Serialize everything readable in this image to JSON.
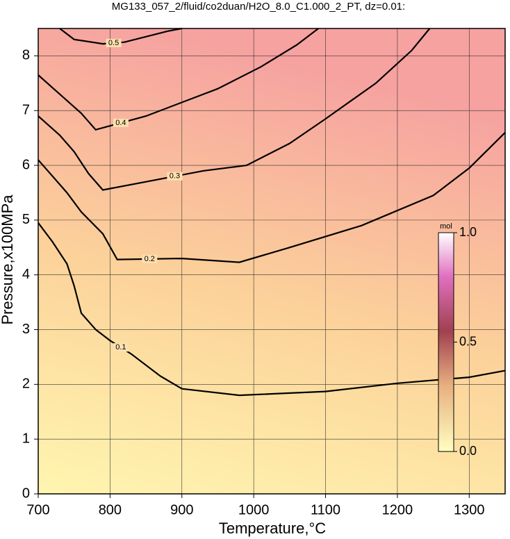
{
  "chart_data": {
    "type": "contour",
    "title": "MG133_057_2/fluid/co2duan/H2O_8.0_C1.000_2_PT, dz=0.01:",
    "x_label": "Temperature,°C",
    "y_label": "Pressure,x100MPa",
    "xlim": [
      700,
      1350
    ],
    "ylim": [
      0,
      8.5
    ],
    "xticks": [
      700,
      800,
      900,
      1000,
      1100,
      1200,
      1300
    ],
    "yticks": [
      0,
      1,
      2,
      3,
      4,
      5,
      6,
      7,
      8
    ],
    "grid": true,
    "colorbar": {
      "label": "mol",
      "lim": [
        0,
        1
      ],
      "ticks": [
        {
          "value": 0,
          "label": "0.0"
        },
        0.5,
        {
          "value": 1,
          "label": "1.0"
        }
      ]
    },
    "contours": [
      {
        "level": 0.1,
        "x": [
          700,
          720,
          740,
          750,
          760,
          780,
          800,
          830,
          870,
          900,
          980,
          1100,
          1200,
          1300,
          1350
        ],
        "y": [
          4.95,
          4.6,
          4.2,
          3.8,
          3.3,
          3.0,
          2.8,
          2.55,
          2.15,
          1.92,
          1.8,
          1.87,
          2.02,
          2.13,
          2.25
        ]
      },
      {
        "level": 0.2,
        "x": [
          700,
          720,
          740,
          760,
          790,
          810,
          900,
          980,
          1050,
          1150,
          1250,
          1300,
          1350
        ],
        "y": [
          6.1,
          5.8,
          5.5,
          5.15,
          4.75,
          4.28,
          4.3,
          4.23,
          4.5,
          4.9,
          5.45,
          5.95,
          6.6
        ]
      },
      {
        "level": 0.3,
        "x": [
          700,
          730,
          750,
          770,
          790,
          850,
          930,
          990,
          1050,
          1100,
          1170,
          1220,
          1245
        ],
        "y": [
          6.9,
          6.55,
          6.25,
          5.85,
          5.55,
          5.7,
          5.9,
          6.0,
          6.4,
          6.85,
          7.5,
          8.1,
          8.5
        ]
      },
      {
        "level": 0.4,
        "x": [
          700,
          730,
          760,
          780,
          850,
          950,
          1010,
          1060,
          1090
        ],
        "y": [
          7.65,
          7.3,
          6.95,
          6.65,
          6.9,
          7.4,
          7.8,
          8.2,
          8.5
        ]
      },
      {
        "level": 0.5,
        "x": [
          730,
          750,
          790,
          820,
          880,
          900
        ],
        "y": [
          8.5,
          8.3,
          8.22,
          8.25,
          8.45,
          8.5
        ]
      }
    ]
  }
}
